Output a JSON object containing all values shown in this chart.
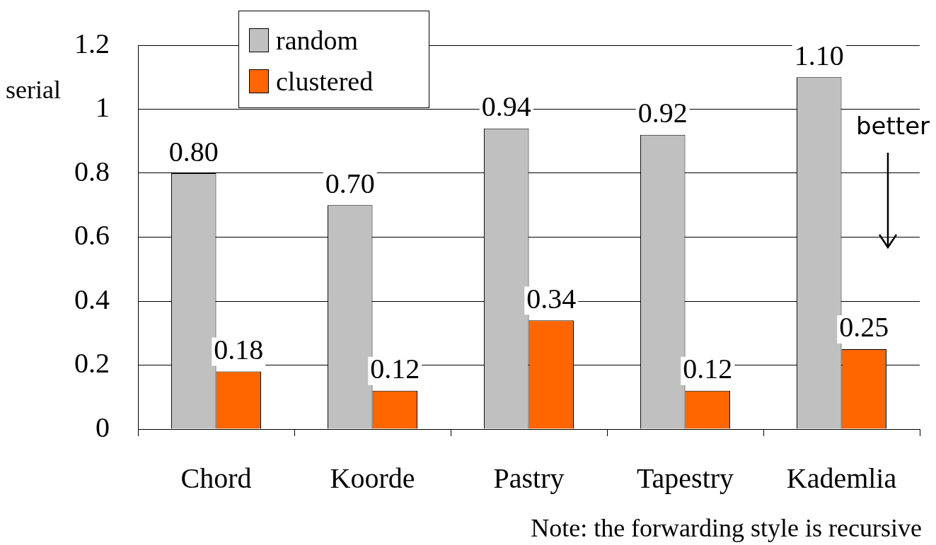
{
  "chart_data": {
    "type": "bar",
    "ylabel": "serial",
    "categories": [
      "Chord",
      "Koorde",
      "Pastry",
      "Tapestry",
      "Kademlia"
    ],
    "series": [
      {
        "name": "random",
        "color": "#c0c0c0",
        "values": [
          0.8,
          0.7,
          0.94,
          0.92,
          1.1
        ],
        "value_labels": [
          "0.80",
          "0.70",
          "0.94",
          "0.92",
          "1.10"
        ]
      },
      {
        "name": "clustered",
        "color": "#ff6600",
        "values": [
          0.18,
          0.12,
          0.34,
          0.12,
          0.25
        ],
        "value_labels": [
          "0.18",
          "0.12",
          "0.34",
          "0.12",
          "0.25"
        ]
      }
    ],
    "ylim": [
      0,
      1.2
    ],
    "yticks": [
      0,
      0.2,
      0.4,
      0.6,
      0.8,
      1,
      1.2
    ],
    "grid": "y",
    "legend": "top left",
    "annotations": [
      "better",
      "Note: the forwarding style is recursive"
    ]
  }
}
